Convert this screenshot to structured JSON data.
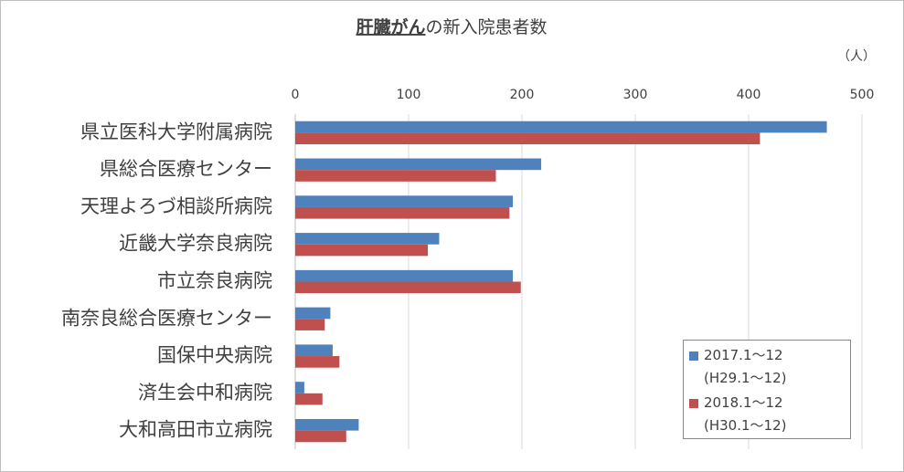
{
  "chart_data": {
    "type": "bar",
    "orientation": "horizontal",
    "title": [
      "肝臓がん",
      "の新入院患者数"
    ],
    "unit_label": "（人）",
    "categories": [
      "県立医科大学附属病院",
      "県総合医療センター",
      "天理よろづ相談所病院",
      "近畿大学奈良病院",
      "市立奈良病院",
      "南奈良総合医療センター",
      "国保中央病院",
      "済生会中和病院",
      "大和高田市立病院"
    ],
    "series": [
      {
        "name": "2017.1～12\n(H29.1～12)",
        "color": "#4f81bd",
        "values": [
          469,
          217,
          192,
          127,
          192,
          31,
          33,
          8,
          56
        ]
      },
      {
        "name": "2018.1～12\n(H30.1～12)",
        "color": "#c0504d",
        "values": [
          410,
          177,
          189,
          117,
          199,
          26,
          39,
          24,
          45
        ]
      }
    ],
    "xlim": [
      0,
      500
    ],
    "xticks": [
      0,
      100,
      200,
      300,
      400,
      500
    ],
    "grid": true,
    "legend": "lower-right"
  }
}
